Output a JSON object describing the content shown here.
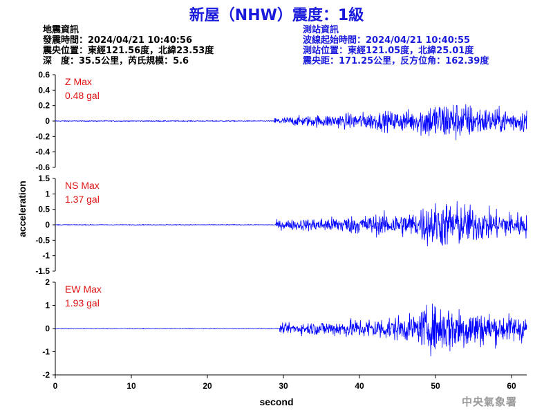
{
  "header": {
    "title": "新屋（NHW）震度：1級"
  },
  "earthquake_info": {
    "heading": "地震資訊",
    "origin_time": "發震時間：2024/04/21 10:40:56",
    "epicenter": "震央位置：東經121.56度，北緯23.53度",
    "depth_magnitude": "深　度：35.5公里，芮氏規模：5.6"
  },
  "station_info": {
    "heading": "測站資訊",
    "wave_start": "波線起始時間：2024/04/21 10:40:55",
    "location": "測站位置：東經121.05度，北緯25.01度",
    "distance": "震央距：171.25公里，反方位角：162.39度"
  },
  "footer": {
    "agency": "中央氣象署"
  },
  "chart_data": {
    "type": "line",
    "xlabel": "second",
    "ylabel": "acceleration",
    "xlim": [
      0,
      62
    ],
    "xticks": [
      0,
      10,
      20,
      30,
      40,
      50,
      60
    ],
    "colors": {
      "trace": "#0000ff",
      "max_label": "#e01010"
    },
    "panels": [
      {
        "component": "Z",
        "max_label": "Z Max",
        "max_value": "0.48 gal",
        "ylim": [
          -0.6,
          0.6
        ],
        "yticks": [
          -0.6,
          -0.4,
          -0.2,
          0,
          0.2,
          0.4,
          0.6
        ],
        "ytick_labels": [
          "-0.6",
          "-0.4",
          "-0.2",
          "0",
          "0.2",
          "0.4",
          "0.6"
        ],
        "peak": 0.48,
        "noise": 0.01,
        "onset": 28.8
      },
      {
        "component": "NS",
        "max_label": "NS Max",
        "max_value": "1.37 gal",
        "ylim": [
          -1.5,
          1.5
        ],
        "yticks": [
          -1.5,
          -1,
          -0.5,
          0,
          0.5,
          1,
          1.5
        ],
        "ytick_labels": [
          "-1.5",
          "-1",
          "-0.5",
          "0",
          "0.5",
          "1",
          "1.5"
        ],
        "peak": 1.37,
        "noise": 0.02,
        "onset": 29.0
      },
      {
        "component": "EW",
        "max_label": "EW Max",
        "max_value": "1.93 gal",
        "ylim": [
          -2,
          2
        ],
        "yticks": [
          -2,
          -1,
          0,
          1,
          2
        ],
        "ytick_labels": [
          "-2",
          "-1",
          "0",
          "1",
          "2"
        ],
        "peak": 1.93,
        "noise": 0.02,
        "onset": 29.5
      }
    ]
  }
}
